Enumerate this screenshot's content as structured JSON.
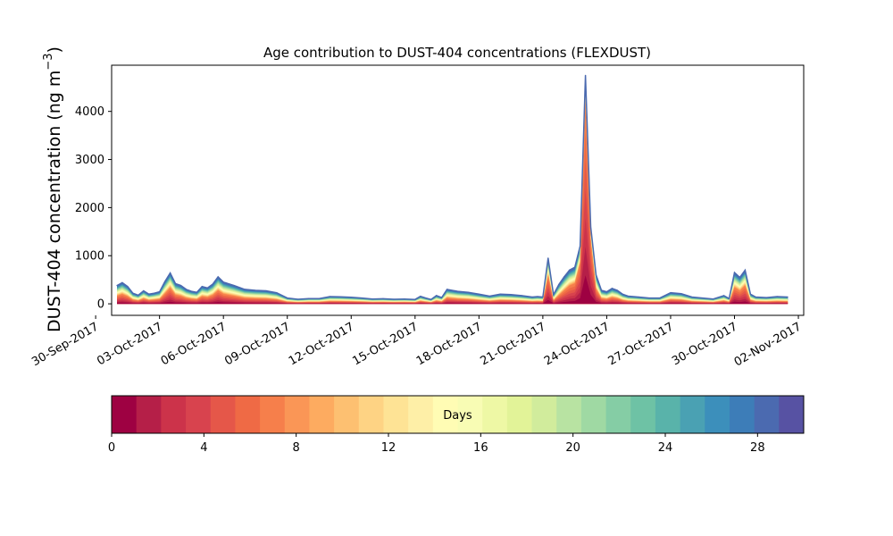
{
  "chart_data": {
    "type": "area",
    "title": "Age contribution to DUST-404 concentrations (FLEXDUST)",
    "ylabel_main": "DUST-404 concentration (ng m",
    "ylabel_sup": "−3",
    "ylabel_close": ")",
    "ylim": [
      -240,
      4960
    ],
    "yticks": [
      0,
      1000,
      2000,
      3000,
      4000
    ],
    "xlim": [
      "2017-09-30T18:00",
      "2017-11-02T06:00"
    ],
    "xticks": [
      "2017-09-30",
      "2017-10-03",
      "2017-10-06",
      "2017-10-09",
      "2017-10-12",
      "2017-10-15",
      "2017-10-18",
      "2017-10-21",
      "2017-10-24",
      "2017-10-27",
      "2017-10-30",
      "2017-11-02"
    ],
    "xtick_labels": [
      "30-Sep-2017",
      "03-Oct-2017",
      "06-Oct-2017",
      "09-Oct-2017",
      "12-Oct-2017",
      "15-Oct-2017",
      "18-Oct-2017",
      "21-Oct-2017",
      "24-Oct-2017",
      "27-Oct-2017",
      "30-Oct-2017",
      "02-Nov-2017"
    ],
    "stack_layers": 30,
    "total_series": {
      "name": "",
      "x": [
        "2017-10-01T00:00",
        "2017-10-01T06:00",
        "2017-10-01T12:00",
        "2017-10-01T18:00",
        "2017-10-02T00:00",
        "2017-10-02T06:00",
        "2017-10-02T12:00",
        "2017-10-02T18:00",
        "2017-10-03T00:00",
        "2017-10-03T06:00",
        "2017-10-03T12:00",
        "2017-10-03T18:00",
        "2017-10-04T00:00",
        "2017-10-04T06:00",
        "2017-10-04T12:00",
        "2017-10-04T18:00",
        "2017-10-05T00:00",
        "2017-10-05T06:00",
        "2017-10-05T12:00",
        "2017-10-05T18:00",
        "2017-10-06T00:00",
        "2017-10-06T12:00",
        "2017-10-07T00:00",
        "2017-10-07T12:00",
        "2017-10-08T00:00",
        "2017-10-08T12:00",
        "2017-10-09T00:00",
        "2017-10-09T12:00",
        "2017-10-10T00:00",
        "2017-10-10T12:00",
        "2017-10-11T00:00",
        "2017-10-11T12:00",
        "2017-10-12T00:00",
        "2017-10-12T12:00",
        "2017-10-13T00:00",
        "2017-10-13T12:00",
        "2017-10-14T00:00",
        "2017-10-14T12:00",
        "2017-10-15T00:00",
        "2017-10-15T06:00",
        "2017-10-15T12:00",
        "2017-10-15T18:00",
        "2017-10-16T00:00",
        "2017-10-16T06:00",
        "2017-10-16T12:00",
        "2017-10-17T00:00",
        "2017-10-17T12:00",
        "2017-10-18T00:00",
        "2017-10-18T12:00",
        "2017-10-19T00:00",
        "2017-10-19T12:00",
        "2017-10-20T00:00",
        "2017-10-20T12:00",
        "2017-10-20T18:00",
        "2017-10-21T00:00",
        "2017-10-21T06:00",
        "2017-10-21T12:00",
        "2017-10-21T18:00",
        "2017-10-22T00:00",
        "2017-10-22T06:00",
        "2017-10-22T12:00",
        "2017-10-22T18:00",
        "2017-10-23T00:00",
        "2017-10-23T06:00",
        "2017-10-23T12:00",
        "2017-10-23T18:00",
        "2017-10-24T00:00",
        "2017-10-24T06:00",
        "2017-10-24T12:00",
        "2017-10-24T18:00",
        "2017-10-25T00:00",
        "2017-10-25T12:00",
        "2017-10-26T00:00",
        "2017-10-26T12:00",
        "2017-10-27T00:00",
        "2017-10-27T12:00",
        "2017-10-28T00:00",
        "2017-10-28T12:00",
        "2017-10-29T00:00",
        "2017-10-29T12:00",
        "2017-10-29T18:00",
        "2017-10-30T00:00",
        "2017-10-30T06:00",
        "2017-10-30T12:00",
        "2017-10-30T18:00",
        "2017-10-31T00:00",
        "2017-10-31T12:00",
        "2017-11-01T00:00",
        "2017-11-01T12:00"
      ],
      "values": [
        380,
        440,
        360,
        220,
        180,
        270,
        200,
        220,
        250,
        460,
        640,
        420,
        380,
        300,
        260,
        240,
        360,
        330,
        410,
        560,
        450,
        380,
        300,
        280,
        270,
        230,
        120,
        95,
        110,
        110,
        150,
        145,
        135,
        120,
        100,
        105,
        95,
        100,
        90,
        155,
        120,
        90,
        170,
        130,
        300,
        260,
        240,
        200,
        160,
        200,
        190,
        170,
        140,
        150,
        140,
        950,
        190,
        400,
        560,
        700,
        760,
        1200,
        4750,
        1600,
        600,
        280,
        250,
        320,
        280,
        200,
        160,
        140,
        120,
        120,
        230,
        210,
        140,
        120,
        100,
        170,
        110,
        650,
        550,
        700,
        200,
        140,
        130,
        150,
        140
      ]
    },
    "colorbar": {
      "label": "Days",
      "min": 0,
      "max": 30,
      "ticks": [
        0,
        4,
        8,
        12,
        16,
        20,
        24,
        28
      ],
      "tick_labels": [
        "0",
        "4",
        "8",
        "12",
        "16",
        "20",
        "24",
        "28"
      ],
      "colors": [
        "#9e0142",
        "#b51f48",
        "#cc334a",
        "#d8434e",
        "#e55749",
        "#ef6a45",
        "#f67f4b",
        "#fa9656",
        "#fdab60",
        "#fdc071",
        "#fed384",
        "#fee395",
        "#feefa7",
        "#fffcb4",
        "#f8fcb4",
        "#eef8a5",
        "#e2f398",
        "#d1ec9c",
        "#b8e3a2",
        "#9fd9a3",
        "#85cda5",
        "#6ec2a5",
        "#59b3aa",
        "#4aa1b3",
        "#3c8fbb",
        "#3d7db8",
        "#4b6ab0",
        "#5752a3"
      ]
    },
    "grid": false,
    "legend": "none"
  }
}
